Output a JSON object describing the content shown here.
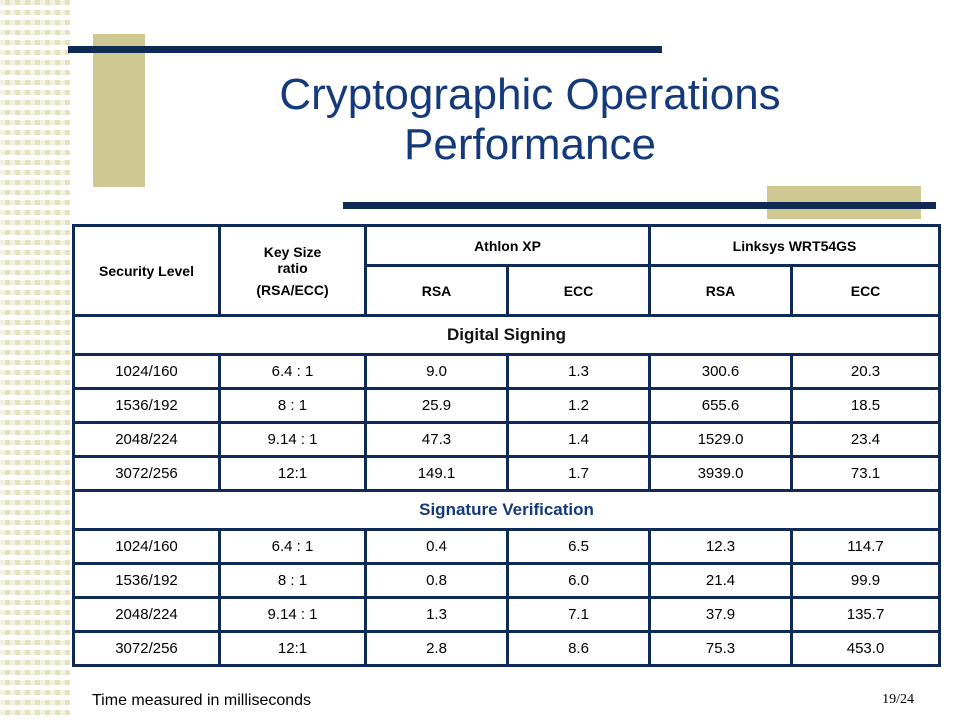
{
  "slide": {
    "title_line1": "Cryptographic Operations",
    "title_line2": "Performance",
    "footer_note": "Time measured in milliseconds",
    "page_number": "19/24"
  },
  "table": {
    "headers": {
      "security_level": "Security Level",
      "key_size_ratio_line1": "Key Size ratio",
      "key_size_ratio_line2": "(RSA/ECC)",
      "athlon": "Athlon XP",
      "linksys": "Linksys WRT54GS",
      "rsa": "RSA",
      "ecc": "ECC"
    },
    "sections": [
      {
        "title": "Digital Signing",
        "rows": [
          [
            "1024/160",
            "6.4 : 1",
            "9.0",
            "1.3",
            "300.6",
            "20.3"
          ],
          [
            "1536/192",
            "8 : 1",
            "25.9",
            "1.2",
            "655.6",
            "18.5"
          ],
          [
            "2048/224",
            "9.14 : 1",
            "47.3",
            "1.4",
            "1529.0",
            "23.4"
          ],
          [
            "3072/256",
            "12:1",
            "149.1",
            "1.7",
            "3939.0",
            "73.1"
          ]
        ]
      },
      {
        "title": "Signature Verification",
        "rows": [
          [
            "1024/160",
            "6.4 : 1",
            "0.4",
            "6.5",
            "12.3",
            "114.7"
          ],
          [
            "1536/192",
            "8 : 1",
            "0.8",
            "6.0",
            "21.4",
            "99.9"
          ],
          [
            "2048/224",
            "9.14 : 1",
            "1.3",
            "7.1",
            "37.9",
            "135.7"
          ],
          [
            "3072/256",
            "12:1",
            "2.8",
            "8.6",
            "75.3",
            "453.0"
          ]
        ]
      }
    ]
  },
  "colors": {
    "navy": "#0e2a55",
    "title_blue": "#153a7c",
    "khaki": "#cdc991"
  }
}
